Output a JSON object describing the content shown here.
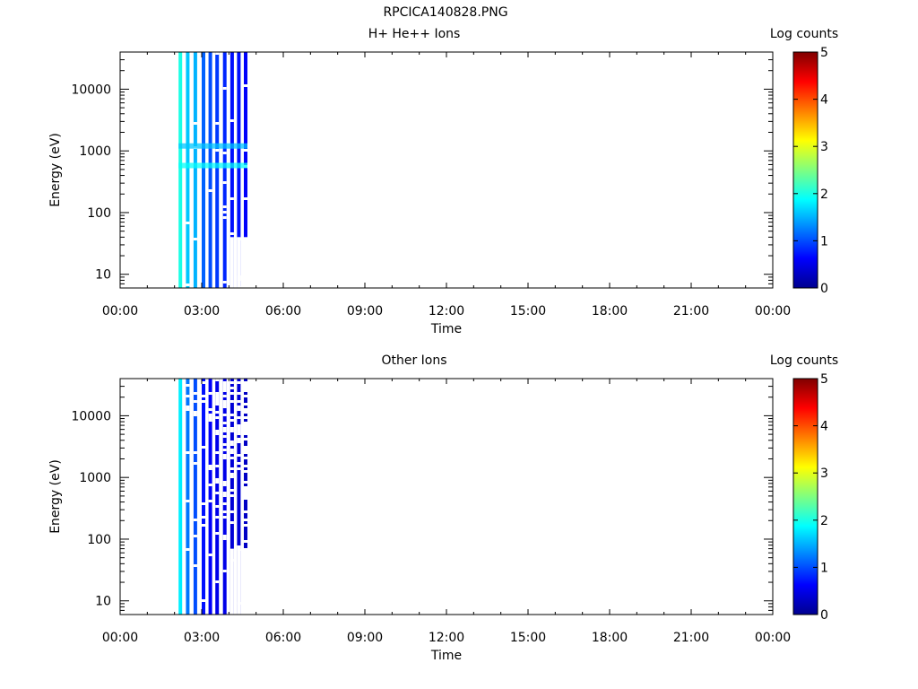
{
  "figure_title": "RPCICA140828.PNG",
  "chart_data": [
    {
      "type": "heatmap",
      "title": "H+ He++ Ions",
      "xlabel": "Time",
      "ylabel": "Energy (eV)",
      "x_ticks": [
        "00:00",
        "03:00",
        "06:00",
        "09:00",
        "12:00",
        "15:00",
        "18:00",
        "21:00",
        "00:00"
      ],
      "y_ticks": [
        "10",
        "100",
        "1000",
        "10000"
      ],
      "y_scale": "log",
      "ylim": [
        6,
        40000
      ],
      "xlim_hours": [
        0,
        24
      ],
      "colorbar": {
        "label": "Log counts",
        "ticks": [
          "0",
          "1",
          "2",
          "3",
          "4",
          "5"
        ],
        "range": [
          0,
          5
        ]
      },
      "stripes": [
        {
          "t": 2.15,
          "log_counts": 2.0
        },
        {
          "t": 2.42,
          "log_counts": 1.6
        },
        {
          "t": 2.7,
          "log_counts": 1.5
        },
        {
          "t": 3.0,
          "log_counts": 1.1
        },
        {
          "t": 3.25,
          "log_counts": 1.0
        },
        {
          "t": 3.5,
          "log_counts": 0.9
        },
        {
          "t": 3.78,
          "log_counts": 0.8
        },
        {
          "t": 4.05,
          "log_counts": 0.7
        },
        {
          "t": 4.3,
          "log_counts": 0.7
        },
        {
          "t": 4.55,
          "log_counts": 0.6
        }
      ],
      "bands": [
        {
          "energy": 580,
          "log_counts": 1.9
        },
        {
          "energy": 1200,
          "log_counts": 1.6
        }
      ]
    },
    {
      "type": "heatmap",
      "title": "Other Ions",
      "xlabel": "Time",
      "ylabel": "Energy (eV)",
      "x_ticks": [
        "00:00",
        "03:00",
        "06:00",
        "09:00",
        "12:00",
        "15:00",
        "18:00",
        "21:00",
        "00:00"
      ],
      "y_ticks": [
        "10",
        "100",
        "1000",
        "10000"
      ],
      "y_scale": "log",
      "ylim": [
        6,
        40000
      ],
      "xlim_hours": [
        0,
        24
      ],
      "colorbar": {
        "label": "Log counts",
        "ticks": [
          "0",
          "1",
          "2",
          "3",
          "4",
          "5"
        ],
        "range": [
          0,
          5
        ]
      },
      "stripes": [
        {
          "t": 2.15,
          "log_counts": 1.8
        },
        {
          "t": 2.42,
          "log_counts": 1.2
        },
        {
          "t": 2.7,
          "log_counts": 1.0
        },
        {
          "t": 3.0,
          "log_counts": 0.7
        },
        {
          "t": 3.25,
          "log_counts": 0.6
        },
        {
          "t": 3.5,
          "log_counts": 0.5
        },
        {
          "t": 3.78,
          "log_counts": 0.5
        },
        {
          "t": 4.05,
          "log_counts": 0.4
        },
        {
          "t": 4.3,
          "log_counts": 0.4
        },
        {
          "t": 4.55,
          "log_counts": 0.3
        }
      ],
      "bands": []
    }
  ]
}
